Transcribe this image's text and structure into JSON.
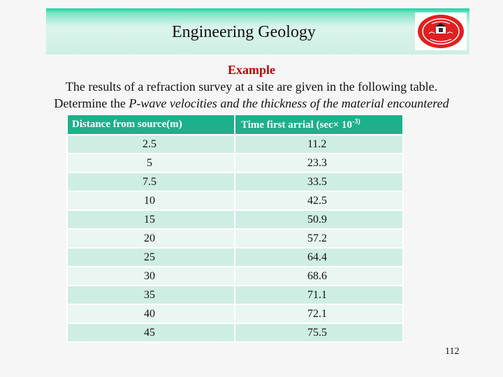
{
  "banner": {
    "title": "Engineering Geology"
  },
  "logo": {
    "icon": "university-seal-icon"
  },
  "heading": "Example",
  "description": {
    "line1": "The results of a refraction survey at a site are given in the following table.",
    "line2_prefix": "Determine the ",
    "line2_italic": "P-wave velocities and the thickness of the material encountered"
  },
  "table": {
    "headers": [
      "Distance from source(m)",
      "Time first arrial (sec× 10",
      "-3)"
    ],
    "rows": [
      [
        "2.5",
        "11.2"
      ],
      [
        "5",
        "23.3"
      ],
      [
        "7.5",
        "33.5"
      ],
      [
        "10",
        "42.5"
      ],
      [
        "15",
        "50.9"
      ],
      [
        "20",
        "57.2"
      ],
      [
        "25",
        "64.4"
      ],
      [
        "30",
        "68.6"
      ],
      [
        "35",
        "71.1"
      ],
      [
        "40",
        "72.1"
      ],
      [
        "45",
        "75.5"
      ]
    ]
  },
  "page_number": "112"
}
